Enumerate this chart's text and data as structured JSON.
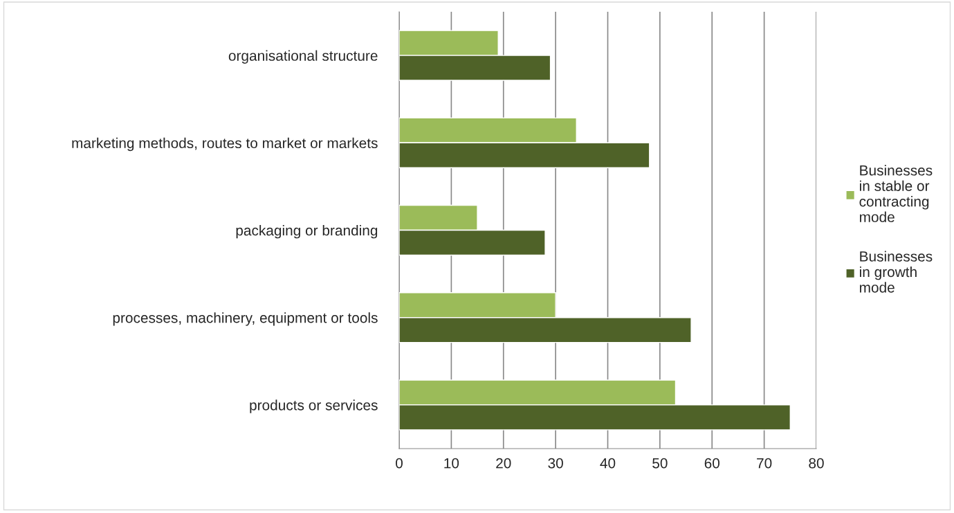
{
  "chart_data": {
    "type": "bar",
    "orientation": "horizontal",
    "categories": [
      "organisational structure",
      "marketing methods, routes to market or markets",
      "packaging or branding",
      "processes, machinery, equipment or tools",
      "products or services"
    ],
    "series": [
      {
        "name": "Businesses in stable or contracting mode",
        "color": "#9bbb59",
        "values": [
          19,
          34,
          15,
          30,
          53
        ]
      },
      {
        "name": "Businesses in growth mode",
        "color": "#4f6228",
        "values": [
          29,
          48,
          28,
          56,
          75
        ]
      }
    ],
    "xlim": [
      0,
      80
    ],
    "xticks": [
      0,
      10,
      20,
      30,
      40,
      50,
      60,
      70,
      80
    ],
    "grid": "x",
    "legend": "right"
  }
}
